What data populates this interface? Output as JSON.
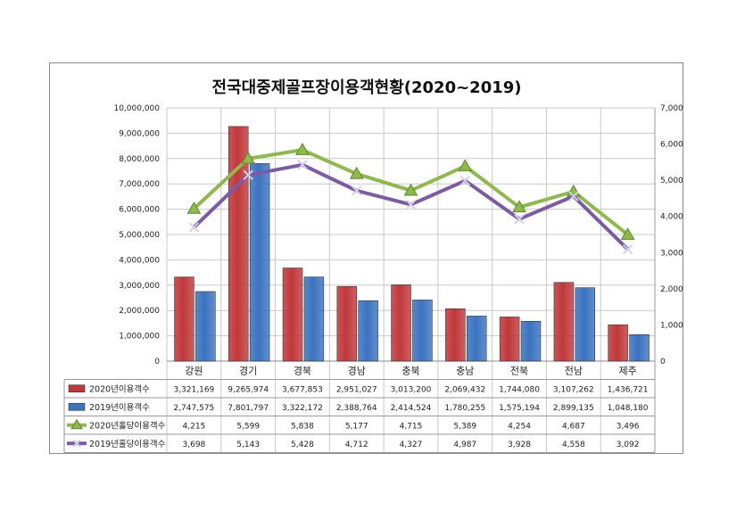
{
  "chart_data": {
    "type": "bar",
    "title": "전국대중제골프장이용객현황(2020~2019)",
    "categories": [
      "강원",
      "경기",
      "경북",
      "경남",
      "충북",
      "충남",
      "전북",
      "전남",
      "제주"
    ],
    "y_left": {
      "ylim": [
        0,
        10000000
      ],
      "ticks": [
        "0",
        "1,000,000",
        "2,000,000",
        "3,000,000",
        "4,000,000",
        "5,000,000",
        "6,000,000",
        "7,000,000",
        "8,000,000",
        "9,000,000",
        "10,000,000"
      ]
    },
    "y_right": {
      "ylim": [
        0,
        7000
      ],
      "ticks": [
        "0",
        "1,000",
        "2,000",
        "3,000",
        "4,000",
        "5,000",
        "6,000",
        "7,000"
      ]
    },
    "grid": true,
    "legend_placement": "data-table",
    "series": [
      {
        "name": "2020년이용객수",
        "kind": "bar",
        "axis": "left",
        "color": "#c0383b",
        "values": [
          3321169,
          9265974,
          3677853,
          2951027,
          3013200,
          2069432,
          1744080,
          3107262,
          1436721
        ],
        "labels": [
          "3,321,169",
          "9,265,974",
          "3,677,853",
          "2,951,027",
          "3,013,200",
          "2,069,432",
          "1,744,080",
          "3,107,262",
          "1,436,721"
        ]
      },
      {
        "name": "2019년이용객수",
        "kind": "bar",
        "axis": "left",
        "color": "#3b73c0",
        "values": [
          2747575,
          7801797,
          3322172,
          2388764,
          2414524,
          1780255,
          1575194,
          2899135,
          1048180
        ],
        "labels": [
          "2,747,575",
          "7,801,797",
          "3,322,172",
          "2,388,764",
          "2,414,524",
          "1,780,255",
          "1,575,194",
          "2,899,135",
          "1,048,180"
        ]
      },
      {
        "name": "2020년홀당이용객수",
        "kind": "line",
        "axis": "right",
        "color": "#8dba4a",
        "marker": "triangle",
        "values": [
          4215,
          5599,
          5838,
          5177,
          4715,
          5389,
          4254,
          4687,
          3496
        ],
        "labels": [
          "4,215",
          "5,599",
          "5,838",
          "5,177",
          "4,715",
          "5,389",
          "4,254",
          "4,687",
          "3,496"
        ]
      },
      {
        "name": "2019년홀당이용객수",
        "kind": "line",
        "axis": "right",
        "color": "#7c5aa6",
        "marker": "x",
        "values": [
          3698,
          5143,
          5428,
          4712,
          4327,
          4987,
          3928,
          4558,
          3092
        ],
        "labels": [
          "3,698",
          "5,143",
          "5,428",
          "4,712",
          "4,327",
          "4,987",
          "3,928",
          "4,558",
          "3,092"
        ]
      }
    ]
  }
}
